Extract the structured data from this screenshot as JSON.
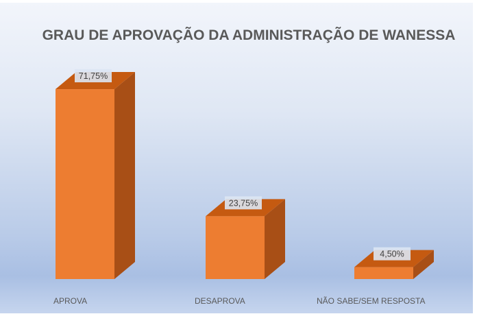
{
  "chart_data": {
    "type": "bar",
    "title": "GRAU DE APROVAÇÃO DA ADMINISTRAÇÃO DE WANESSA",
    "categories": [
      "APROVA",
      "DESAPROVA",
      "NÃO SABE/SEM RESPOSTA"
    ],
    "values": [
      71.75,
      23.75,
      4.5
    ],
    "data_labels": [
      "71,75%",
      "23,75%",
      "4,50%"
    ],
    "xlabel": "",
    "ylabel": "",
    "ylim": [
      0,
      75
    ],
    "grid": false,
    "legend": "none",
    "style": "3d-column",
    "colors": {
      "front": "#ed7d31",
      "top": "#c55a11",
      "side": "#a84f16",
      "label_bg": "#dbe5f3"
    }
  }
}
